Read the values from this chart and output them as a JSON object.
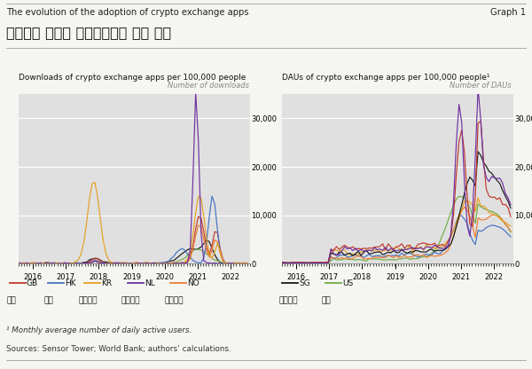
{
  "title_en": "The evolution of the adoption of crypto exchange apps",
  "title_kr": "가상화포 거래소 애플리케이션 사용 정도",
  "graph_label": "Graph 1",
  "left_panel_title": "Downloads of crypto exchange apps per 100,000 people",
  "left_panel_subtitle": "Number of downloads",
  "right_panel_title": "DAUs of crypto exchange apps per 100,000 people¹",
  "right_panel_subtitle": "Number of DAUs",
  "footnote": "¹ Monthly average number of daily active users.",
  "sources": "Sources: Sensor Tower; World Bank; authors’ calculations.",
  "legend_left": [
    {
      "code": "GB",
      "label": "영국",
      "color": "#c0392b"
    },
    {
      "code": "HK",
      "label": "홍콩",
      "color": "#4472c4"
    },
    {
      "code": "KR",
      "label": "대한민국",
      "color": "#e6a020"
    },
    {
      "code": "NL",
      "label": "네덜란드",
      "color": "#7030a0"
    },
    {
      "code": "NO",
      "label": "노르웨이",
      "color": "#ed7d31"
    }
  ],
  "legend_right": [
    {
      "code": "SG",
      "label": "싱가포르",
      "color": "#1a1a1a"
    },
    {
      "code": "US",
      "label": "미국",
      "color": "#70ad47"
    }
  ],
  "ylim": [
    0,
    35000
  ],
  "yticks": [
    0,
    10000,
    20000,
    30000
  ],
  "xlim": [
    2015.58,
    2022.5
  ],
  "years": [
    2016,
    2017,
    2018,
    2019,
    2020,
    2021,
    2022
  ],
  "background_color": "#e0e0e0",
  "outer_background": "#f5f5f2",
  "grid_color": "#ffffff",
  "title_line_color": "#aaaaaa",
  "bottom_line_color": "#aaaaaa"
}
